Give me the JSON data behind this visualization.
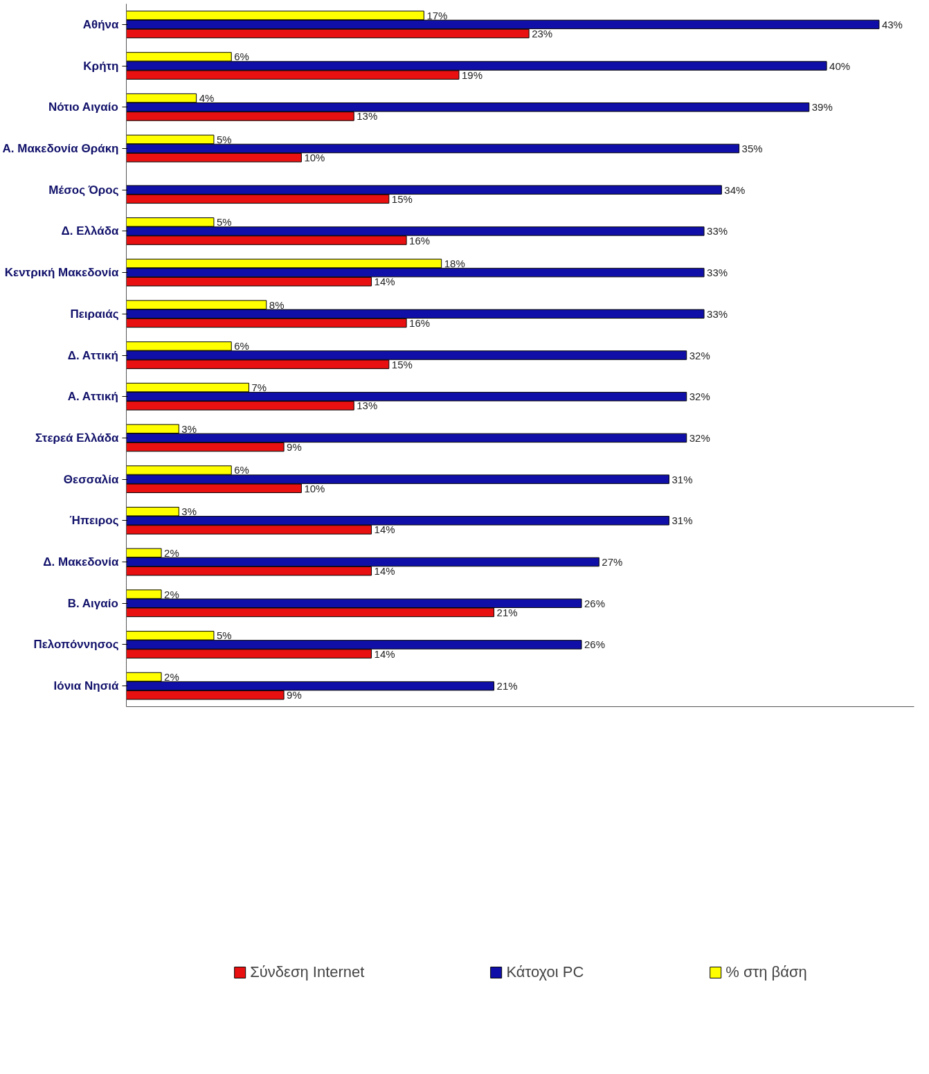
{
  "chart_data": {
    "type": "bar",
    "orientation": "horizontal",
    "categories": [
      "Αθήνα",
      "Κρήτη",
      "Νότιο Αιγαίο",
      "Α. Μακεδονία Θράκη",
      "Μέσος Όρος",
      "Δ. Ελλάδα",
      "Κεντρική Μακεδονία",
      "Πειραιάς",
      "Δ. Αττική",
      "Α. Αττική",
      "Στερεά Ελλάδα",
      "Θεσσαλία",
      "Ήπειρος",
      "Δ. Μακεδονία",
      "Β. Αιγαίο",
      "Πελοπόννησος",
      "Ιόνια Νησιά"
    ],
    "series": [
      {
        "name": "Σύνδεση Internet",
        "color": "#e81010",
        "values": [
          23,
          19,
          13,
          10,
          15,
          16,
          14,
          16,
          15,
          13,
          9,
          10,
          14,
          14,
          21,
          14,
          9
        ],
        "value_labels": [
          "23%",
          "19%",
          "13%",
          "10%",
          "15%",
          "16%",
          "14%",
          "16%",
          "15%",
          "13%",
          "9%",
          "10%",
          "14%",
          "14%",
          "21%",
          "14%",
          "9%"
        ]
      },
      {
        "name": "Κάτοχοι PC",
        "color": "#1010a8",
        "values": [
          43,
          40,
          39,
          35,
          34,
          33,
          33,
          33,
          32,
          32,
          32,
          31,
          31,
          27,
          26,
          26,
          21
        ],
        "value_labels": [
          "43%",
          "40%",
          "39%",
          "35%",
          "34%",
          "33%",
          "33%",
          "33%",
          "32%",
          "32%",
          "32%",
          "31%",
          "31%",
          "27%",
          "26%",
          "26%",
          "21%"
        ]
      },
      {
        "name": "% στη βάση",
        "color": "#ffff00",
        "values": [
          17,
          6,
          4,
          5,
          null,
          5,
          18,
          8,
          6,
          7,
          3,
          6,
          3,
          2,
          2,
          5,
          2
        ],
        "value_labels": [
          "17%",
          "6%",
          "4%",
          "5%",
          null,
          "5%",
          "18%",
          "8%",
          "6%",
          "7%",
          "3%",
          "6%",
          "3%",
          "2%",
          "2%",
          "5%",
          "2%"
        ]
      }
    ],
    "xlim": [
      0,
      45
    ],
    "tick_labels": "y",
    "grid": false,
    "legend": "bottom"
  }
}
